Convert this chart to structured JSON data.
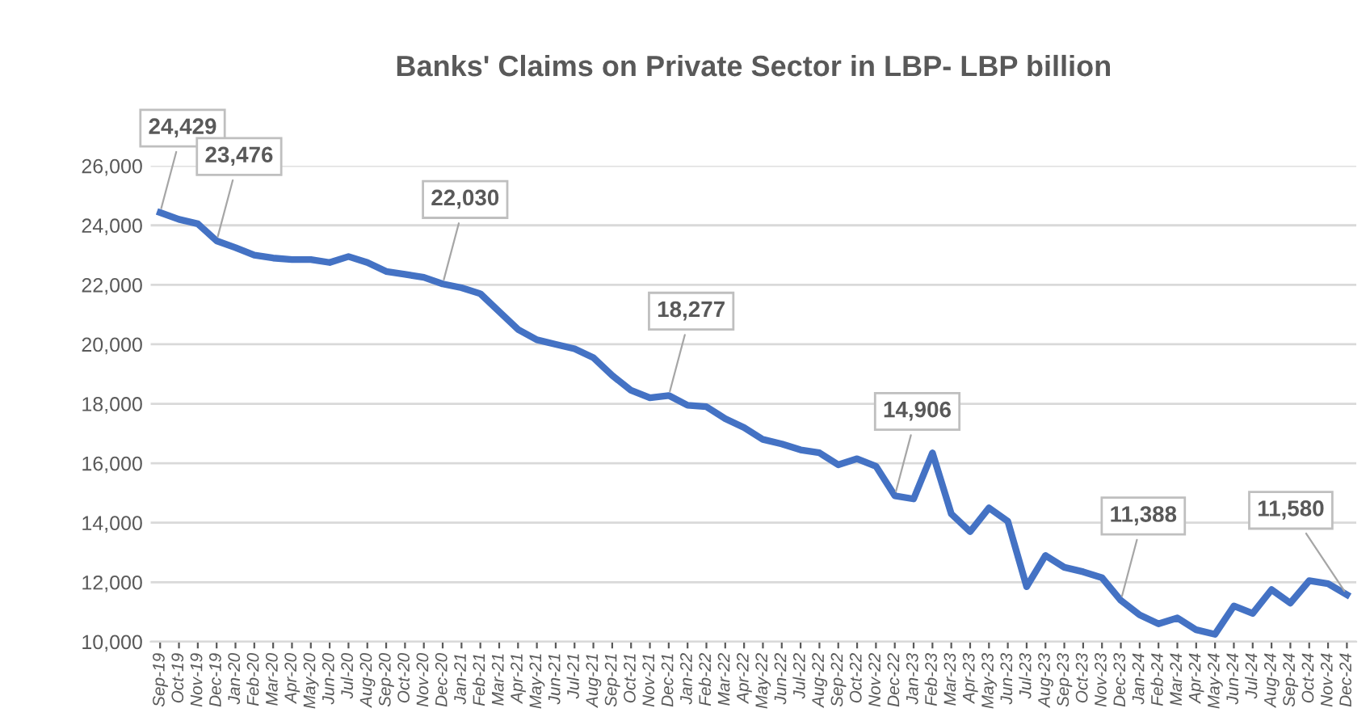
{
  "chart_data": {
    "type": "line",
    "title": "Banks' Claims on Private Sector in LBP- LBP billion",
    "categories": [
      "Sep-19",
      "Oct-19",
      "Nov-19",
      "Dec-19",
      "Jan-20",
      "Feb-20",
      "Mar-20",
      "Apr-20",
      "May-20",
      "Jun-20",
      "Jul-20",
      "Aug-20",
      "Sep-20",
      "Oct-20",
      "Nov-20",
      "Dec-20",
      "Jan-21",
      "Feb-21",
      "Mar-21",
      "Apr-21",
      "May-21",
      "Jun-21",
      "Jul-21",
      "Aug-21",
      "Sep-21",
      "Oct-21",
      "Nov-21",
      "Dec-21",
      "Jan-22",
      "Feb-22",
      "Mar-22",
      "Apr-22",
      "May-22",
      "Jun-22",
      "Jul-22",
      "Aug-22",
      "Sep-22",
      "Oct-22",
      "Nov-22",
      "Dec-22",
      "Jan-23",
      "Feb-23",
      "Mar-23",
      "Apr-23",
      "May-23",
      "Jun-23",
      "Jul-23",
      "Aug-23",
      "Sep-23",
      "Oct-23",
      "Nov-23",
      "Dec-23",
      "Jan-24",
      "Feb-24",
      "Mar-24",
      "Apr-24",
      "May-24",
      "Jun-24",
      "Jul-24",
      "Aug-24",
      "Sep-24",
      "Oct-24",
      "Nov-24",
      "Dec-24"
    ],
    "series": [
      {
        "color": "#4472c4",
        "values": [
          24429,
          24200,
          24050,
          23476,
          23250,
          23000,
          22900,
          22850,
          22850,
          22750,
          22950,
          22750,
          22450,
          22350,
          22250,
          22030,
          21900,
          21700,
          21100,
          20500,
          20150,
          20000,
          19850,
          19550,
          18950,
          18450,
          18200,
          18277,
          17950,
          17900,
          17500,
          17200,
          16800,
          16650,
          16450,
          16350,
          15950,
          16150,
          15900,
          14906,
          14800,
          16350,
          14300,
          13700,
          14500,
          14050,
          11850,
          12900,
          12500,
          12350,
          12150,
          11388,
          10900,
          10600,
          10800,
          10400,
          10250,
          11200,
          10950,
          11750,
          11300,
          12050,
          11950,
          11580
        ]
      }
    ],
    "ylim": [
      10000,
      26000
    ],
    "yticks": [
      {
        "value": 10000,
        "label": "10,000"
      },
      {
        "value": 12000,
        "label": "12,000"
      },
      {
        "value": 14000,
        "label": "14,000"
      },
      {
        "value": 16000,
        "label": "16,000"
      },
      {
        "value": 18000,
        "label": "18,000"
      },
      {
        "value": 20000,
        "label": "20,000"
      },
      {
        "value": 22000,
        "label": "22,000"
      },
      {
        "value": 24000,
        "label": "24,000"
      },
      {
        "value": 26000,
        "label": "26,000"
      }
    ],
    "grid": "y",
    "legend": false,
    "marker": "none",
    "line_style": "solid",
    "annotations": [
      {
        "text": "24,429",
        "x": "Sep-19",
        "y": 24429
      },
      {
        "text": "23,476",
        "x": "Dec-19",
        "y": 23476
      },
      {
        "text": "22,030",
        "x": "Dec-20",
        "y": 22030
      },
      {
        "text": "18,277",
        "x": "Dec-21",
        "y": 18277
      },
      {
        "text": "14,906",
        "x": "Dec-22",
        "y": 14906
      },
      {
        "text": "11,388",
        "x": "Dec-23",
        "y": 11388
      },
      {
        "text": "11,580",
        "x": "Dec-24",
        "y": 11580
      }
    ]
  }
}
